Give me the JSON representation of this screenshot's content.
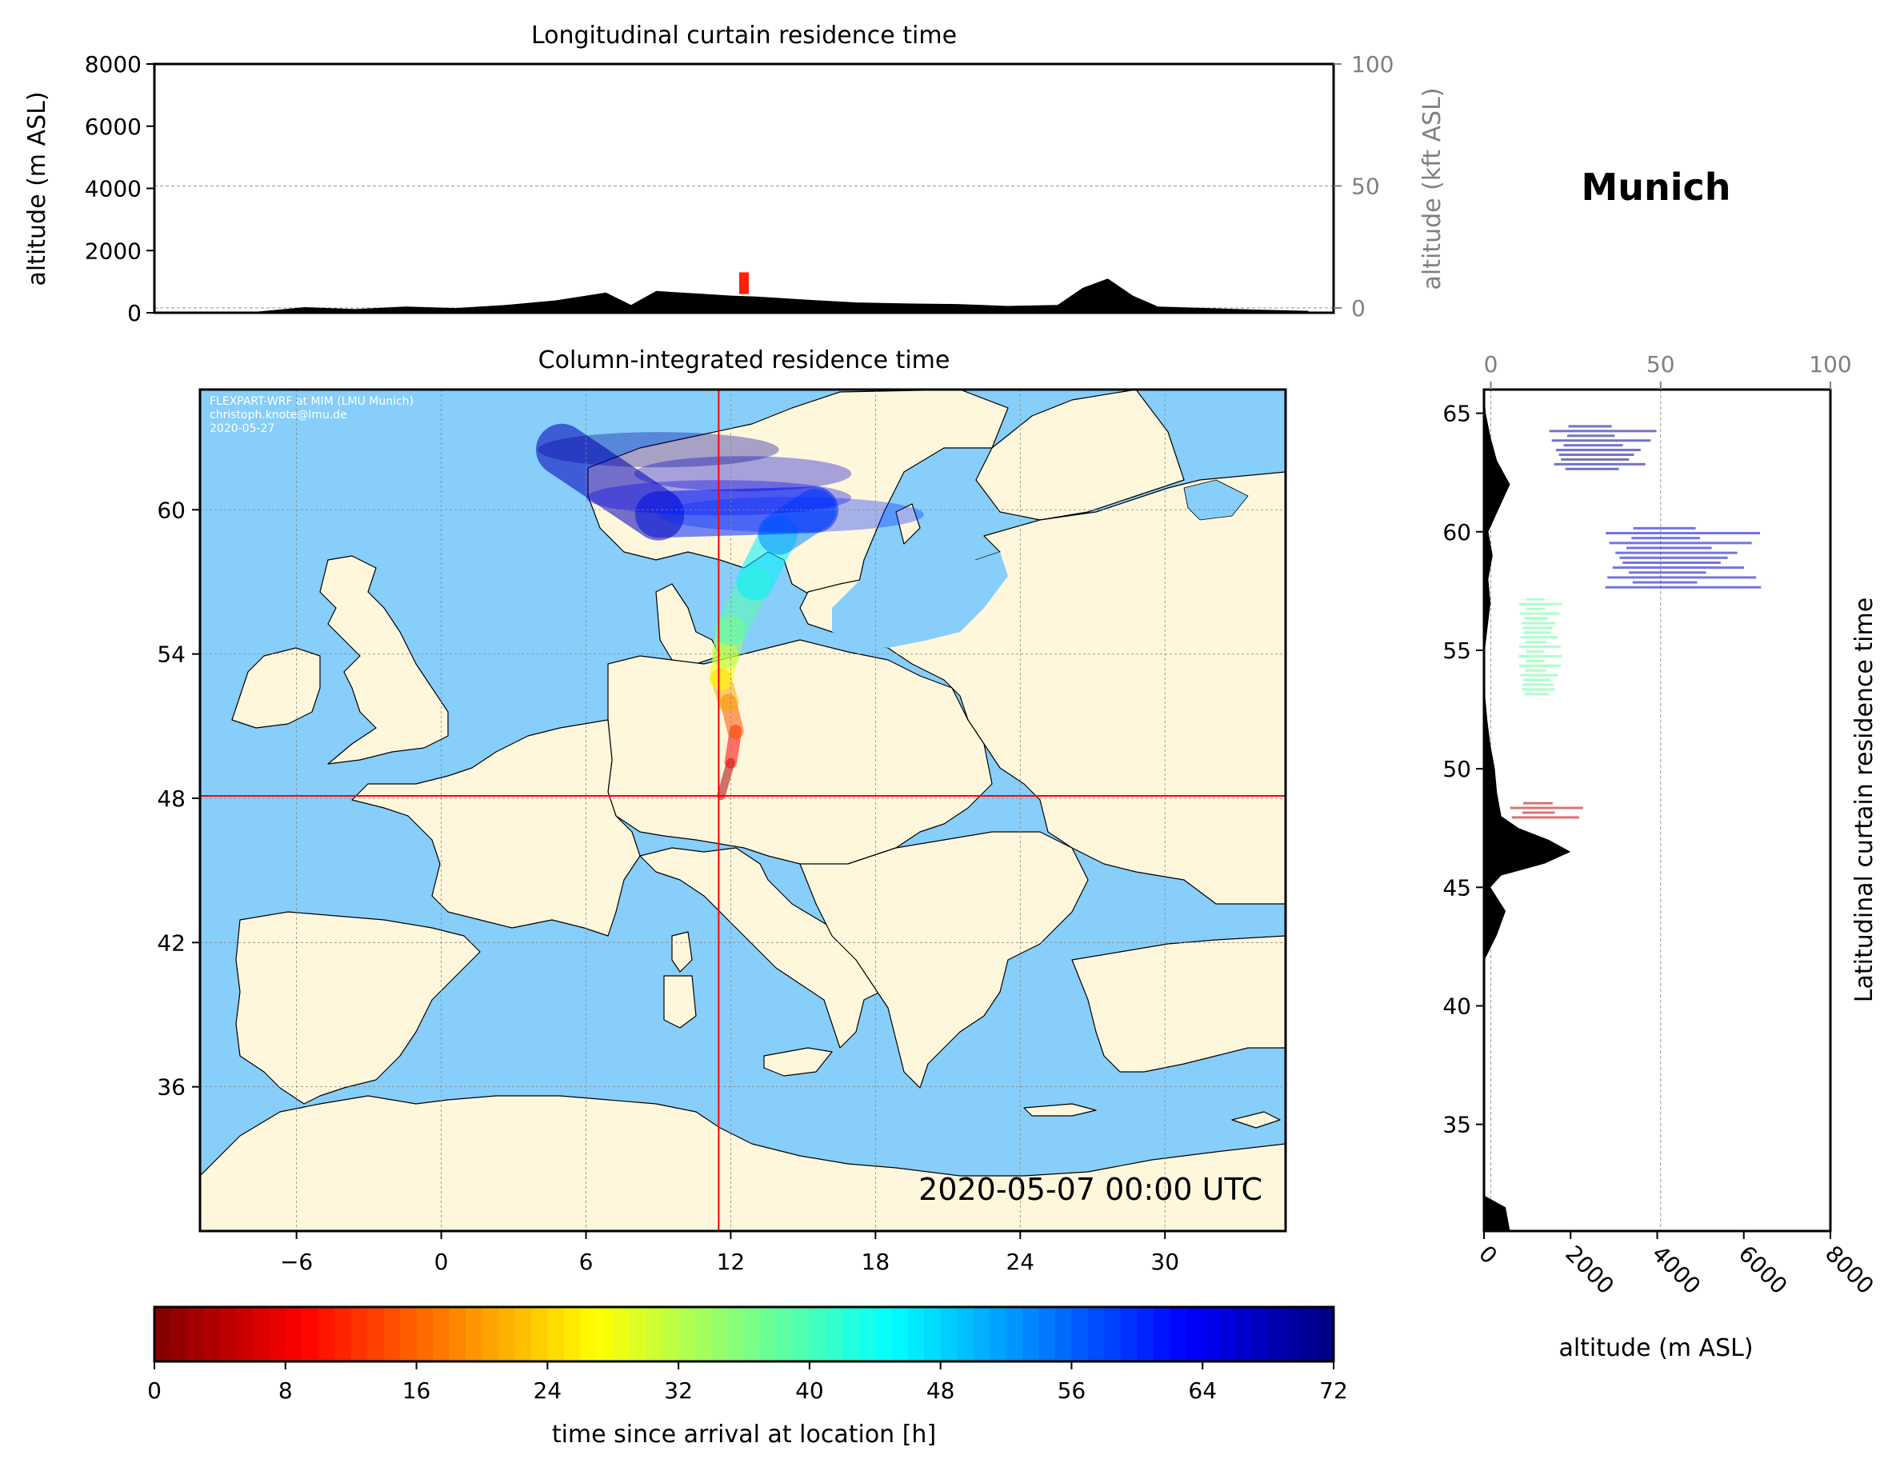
{
  "location_title": "Munich",
  "top_panel": {
    "title": "Longitudinal curtain residence time",
    "ylabel_left": "altitude (m ASL)",
    "ylabel_right": "altitude (kft ASL)",
    "yticks_left": [
      "0",
      "2000",
      "4000",
      "6000",
      "8000"
    ],
    "yticks_right": [
      "0",
      "50",
      "100"
    ]
  },
  "map_panel": {
    "title": "Column-integrated residence time",
    "credit_lines": [
      "FLEXPART-WRF at MIM (LMU Munich)",
      "christoph.knote@lmu.de",
      "2020-05-27"
    ],
    "timestamp": "2020-05-07 00:00 UTC",
    "xticks": [
      "−6",
      "0",
      "6",
      "12",
      "18",
      "24",
      "30"
    ],
    "yticks": [
      "60",
      "54",
      "48",
      "42",
      "36"
    ],
    "colors": {
      "ocean": "#87cefa",
      "land": "#fff7dc",
      "crosshair": "#ff0000"
    }
  },
  "right_panel": {
    "ylabel": "Latitudinal curtain residence time",
    "xlabel": "altitude (m ASL)",
    "xticks_bottom": [
      "0",
      "2000",
      "4000",
      "6000",
      "8000"
    ],
    "xticks_top": [
      "0",
      "50",
      "100"
    ],
    "yticks": [
      "65",
      "60",
      "55",
      "50",
      "45",
      "40",
      "35"
    ]
  },
  "colorbar": {
    "label": "time since arrival at location [h]",
    "ticks": [
      "0",
      "8",
      "16",
      "24",
      "32",
      "40",
      "48",
      "56",
      "64",
      "72"
    ]
  },
  "chart_data": [
    {
      "type": "area",
      "title": "Longitudinal curtain residence time",
      "ylabel": "altitude (m ASL)",
      "ylim": [
        0,
        8000
      ],
      "secondary_ylabel": "altitude (kft ASL)",
      "secondary_ylim": [
        -2,
        100
      ],
      "terrain_profile": {
        "lon": [
          -12,
          -8,
          -6,
          -4,
          -2,
          0,
          2,
          4,
          6,
          7,
          8,
          9,
          10,
          11,
          12,
          14,
          16,
          18,
          20,
          22,
          24,
          25,
          26,
          27,
          28,
          30,
          32,
          34
        ],
        "altitude_m": [
          0,
          30,
          180,
          120,
          200,
          150,
          250,
          400,
          650,
          250,
          700,
          650,
          600,
          550,
          520,
          420,
          330,
          300,
          280,
          220,
          250,
          800,
          1100,
          550,
          200,
          150,
          100,
          60
        ]
      },
      "residence": {
        "lon": 11.5,
        "altitude_range_m": [
          600,
          1300
        ],
        "time_h": 0
      }
    },
    {
      "type": "heatmap",
      "title": "Column-integrated residence time",
      "xlabel": "",
      "ylabel": "",
      "xlim": [
        -10,
        35
      ],
      "ylim": [
        30,
        65
      ],
      "gridlines": true,
      "release_location": {
        "lon": 11.5,
        "lat": 48.1,
        "name": "Munich"
      },
      "plume_track": [
        {
          "lon": 11.6,
          "lat": 48.1,
          "time_h": 0
        },
        {
          "lon": 12.0,
          "lat": 49.5,
          "time_h": 6
        },
        {
          "lon": 12.2,
          "lat": 50.8,
          "time_h": 12
        },
        {
          "lon": 11.9,
          "lat": 52.0,
          "time_h": 18
        },
        {
          "lon": 11.6,
          "lat": 53.0,
          "time_h": 24
        },
        {
          "lon": 11.8,
          "lat": 54.0,
          "time_h": 30
        },
        {
          "lon": 12.0,
          "lat": 55.0,
          "time_h": 36
        },
        {
          "lon": 13.0,
          "lat": 57.0,
          "time_h": 42
        },
        {
          "lon": 14.0,
          "lat": 59.0,
          "time_h": 50
        },
        {
          "lon": 15.5,
          "lat": 60.0,
          "time_h": 56
        },
        {
          "lon": 9.0,
          "lat": 59.8,
          "time_h": 64
        },
        {
          "lon": 5.0,
          "lat": 62.5,
          "time_h": 72
        }
      ],
      "colorscale": "jet",
      "color_range_h": [
        0,
        72
      ]
    },
    {
      "type": "area",
      "title": "Latitudinal curtain residence time",
      "xlabel": "altitude (m ASL)",
      "xlim": [
        0,
        8000
      ],
      "secondary_xlim": [
        -2,
        100
      ],
      "ylim": [
        30.5,
        66
      ],
      "terrain_profile": {
        "lat": [
          30.5,
          31.5,
          32,
          33,
          35,
          40,
          42,
          43,
          44,
          45,
          45.5,
          46,
          46.5,
          47,
          47.5,
          48,
          49,
          50,
          51,
          52,
          53,
          55,
          57,
          58,
          59,
          60,
          61,
          62,
          62.5,
          63,
          64,
          65,
          66
        ],
        "altitude_m": [
          600,
          500,
          0,
          0,
          0,
          0,
          30,
          300,
          500,
          150,
          400,
          1400,
          2000,
          1500,
          800,
          400,
          300,
          250,
          150,
          80,
          30,
          20,
          150,
          100,
          200,
          100,
          350,
          600,
          450,
          300,
          150,
          40,
          0
        ]
      },
      "residence_blocks": [
        {
          "lat_range": [
            47.8,
            48.6
          ],
          "altitude_range_m": [
            600,
            2300
          ],
          "time_h": 4
        },
        {
          "lat_range": [
            53.0,
            57.2
          ],
          "altitude_range_m": [
            800,
            1800
          ],
          "time_h": 38
        },
        {
          "lat_range": [
            57.5,
            60.2
          ],
          "altitude_range_m": [
            2800,
            6400
          ],
          "time_h": 66
        },
        {
          "lat_range": [
            62.5,
            64.5
          ],
          "altitude_range_m": [
            1500,
            4000
          ],
          "time_h": 70
        }
      ]
    }
  ]
}
